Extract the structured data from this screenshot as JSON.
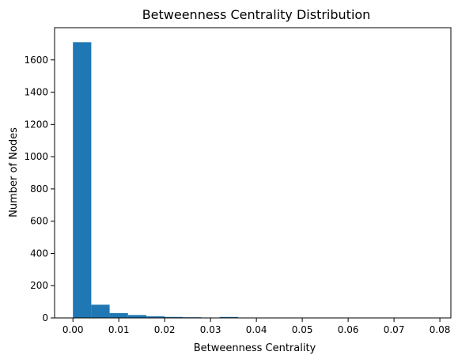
{
  "chart_data": {
    "type": "bar",
    "title": "Betweenness Centrality Distribution",
    "xlabel": "Betweenness Centrality",
    "ylabel": "Number of Nodes",
    "bin_edges": [
      0.0,
      0.004,
      0.008,
      0.012,
      0.016,
      0.02,
      0.024,
      0.028,
      0.032,
      0.036,
      0.04,
      0.044,
      0.048,
      0.052,
      0.056,
      0.06,
      0.064,
      0.068,
      0.072,
      0.076,
      0.08
    ],
    "values": [
      1710,
      82,
      30,
      18,
      10,
      6,
      4,
      2,
      6,
      1,
      1,
      1,
      0,
      0,
      0,
      1,
      0,
      0,
      0,
      1
    ],
    "xlim": [
      -0.004,
      0.0824
    ],
    "ylim": [
      0,
      1800
    ],
    "xticks": [
      0.0,
      0.01,
      0.02,
      0.03,
      0.04,
      0.05,
      0.06,
      0.07,
      0.08
    ],
    "xtick_labels": [
      "0.00",
      "0.01",
      "0.02",
      "0.03",
      "0.04",
      "0.05",
      "0.06",
      "0.07",
      "0.08"
    ],
    "yticks": [
      0,
      200,
      400,
      600,
      800,
      1000,
      1200,
      1400,
      1600
    ],
    "ytick_labels": [
      "0",
      "200",
      "400",
      "600",
      "800",
      "1000",
      "1200",
      "1400",
      "1600"
    ],
    "bar_color": "#1f77b4",
    "grid": false
  }
}
